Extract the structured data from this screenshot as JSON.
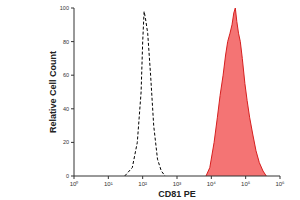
{
  "chart_data": {
    "type": "line",
    "x_label": "CD81 PE",
    "y_label": "Relative Cell Count",
    "log": "x",
    "xlim": [
      1,
      1000000
    ],
    "xticks": [
      {
        "value": 1,
        "label": "10⁰"
      },
      {
        "value": 10,
        "label": "10¹"
      },
      {
        "value": 100,
        "label": "10²"
      },
      {
        "value": 1000,
        "label": "10³"
      },
      {
        "value": 10000,
        "label": "10⁴"
      },
      {
        "value": 100000,
        "label": "10⁵"
      },
      {
        "value": 1000000,
        "label": "10⁶"
      }
    ],
    "ylim": [
      0,
      100
    ],
    "yticks": [
      0,
      20,
      40,
      60,
      80,
      100
    ],
    "grid": false,
    "series": [
      {
        "type": "line",
        "line_style": "dashed",
        "color": "#000000",
        "x": [
          30,
          50,
          70,
          90,
          100,
          110,
          120,
          140,
          170,
          210,
          270,
          350,
          450
        ],
        "values": [
          0,
          5,
          20,
          50,
          80,
          98,
          94,
          85,
          60,
          30,
          10,
          3,
          0
        ]
      },
      {
        "type": "area",
        "line_style": "solid",
        "color": "#f25c5c",
        "x": [
          7000,
          9000,
          12000,
          15000,
          18000,
          22000,
          26000,
          30000,
          35000,
          40000,
          45000,
          50000,
          55000,
          62000,
          70000,
          80000,
          95000,
          110000,
          130000,
          160000,
          200000,
          250000,
          320000,
          400000
        ],
        "values": [
          0,
          5,
          20,
          35,
          48,
          60,
          72,
          80,
          85,
          90,
          97,
          100,
          92,
          85,
          80,
          70,
          55,
          45,
          35,
          25,
          15,
          8,
          3,
          0
        ]
      }
    ]
  }
}
